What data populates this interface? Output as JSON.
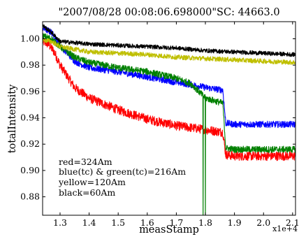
{
  "chart_data": {
    "type": "line",
    "title": "\"2007/08/28 00:08:06.698000\"SC: 44663.0",
    "xlabel": "measStamp",
    "ylabel": "totalIntensity",
    "x_multiplier": "x1e+4",
    "xlim": [
      1.24,
      2.11
    ],
    "ylim": [
      0.866,
      1.013
    ],
    "x_ticks": [
      1.3,
      1.4,
      1.5,
      1.6,
      1.7,
      1.8,
      1.9,
      2.0,
      2.1
    ],
    "x_tick_labels": [
      "1.3",
      "1.4",
      "1.5",
      "1.6",
      "1.7",
      "1.8",
      "1.9",
      "2.0",
      "2.1"
    ],
    "y_ticks": [
      0.88,
      0.9,
      0.92,
      0.94,
      0.96,
      0.98,
      1.0
    ],
    "y_tick_labels": [
      "0.88",
      "0.90",
      "0.92",
      "0.94",
      "0.96",
      "0.98",
      "1.00"
    ],
    "grid": false,
    "annotations": [
      "red=324Am",
      "blue(tc) & green(tc)=216Am",
      "yellow=120Am",
      "black=60Am"
    ],
    "series": [
      {
        "color": "#ff0000",
        "x": [
          1.24,
          1.26,
          1.28,
          1.3,
          1.35,
          1.4,
          1.5,
          1.6,
          1.7,
          1.8,
          1.86,
          1.87,
          1.9,
          2.0,
          2.11
        ],
        "values": [
          0.998,
          0.996,
          0.99,
          0.98,
          0.963,
          0.955,
          0.946,
          0.939,
          0.934,
          0.931,
          0.929,
          0.912,
          0.911,
          0.911,
          0.911
        ],
        "noise": 0.0035
      },
      {
        "color": "#0000ff",
        "x": [
          1.24,
          1.27,
          1.3,
          1.35,
          1.4,
          1.5,
          1.6,
          1.7,
          1.78,
          1.8,
          1.86,
          1.87,
          1.9,
          2.0,
          2.11
        ],
        "values": [
          1.008,
          1.005,
          0.995,
          0.983,
          0.978,
          0.975,
          0.971,
          0.967,
          0.964,
          0.963,
          0.961,
          0.936,
          0.935,
          0.935,
          0.935
        ],
        "noise": 0.0025
      },
      {
        "color": "#008000",
        "x": [
          1.24,
          1.27,
          1.3,
          1.35,
          1.4,
          1.5,
          1.6,
          1.7,
          1.75,
          1.8,
          1.86,
          1.87,
          1.9,
          2.0,
          2.11
        ],
        "values": [
          1.002,
          1.0,
          0.994,
          0.986,
          0.982,
          0.978,
          0.975,
          0.97,
          0.966,
          0.955,
          0.951,
          0.917,
          0.916,
          0.916,
          0.916
        ],
        "noise": 0.0025,
        "dropouts": [
          1.792,
          1.8
        ]
      },
      {
        "color": "#bfbf00",
        "x": [
          1.24,
          1.27,
          1.3,
          1.4,
          1.5,
          1.6,
          1.7,
          1.8,
          1.9,
          2.0,
          2.11
        ],
        "values": [
          0.999,
          0.998,
          0.994,
          0.99,
          0.989,
          0.988,
          0.986,
          0.985,
          0.984,
          0.983,
          0.982
        ],
        "noise": 0.0018
      },
      {
        "color": "#000000",
        "x": [
          1.24,
          1.27,
          1.3,
          1.4,
          1.5,
          1.6,
          1.7,
          1.8,
          1.9,
          2.0,
          2.11
        ],
        "values": [
          1.01,
          1.005,
          0.998,
          0.996,
          0.995,
          0.994,
          0.993,
          0.991,
          0.99,
          0.989,
          0.988
        ],
        "noise": 0.0016
      }
    ]
  }
}
